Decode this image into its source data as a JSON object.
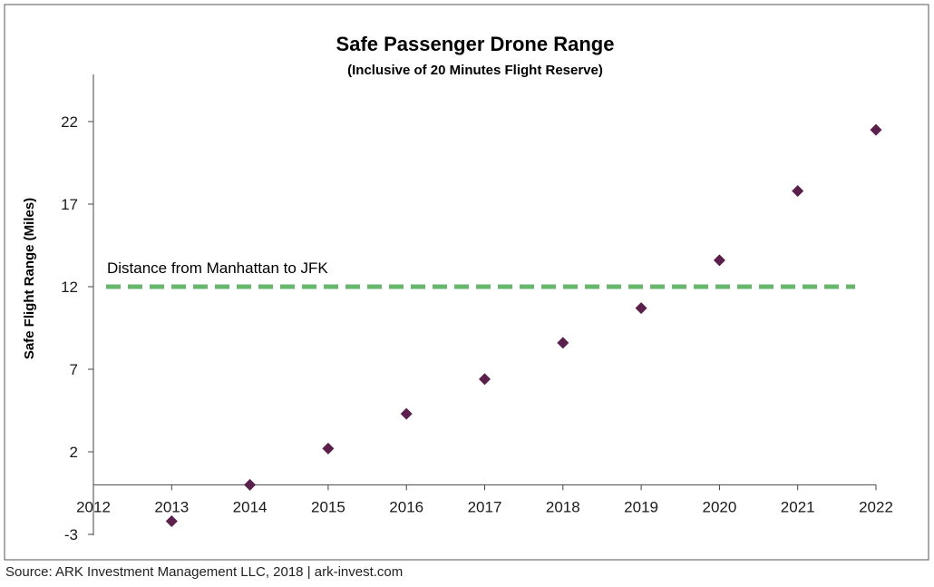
{
  "chart_data": {
    "type": "scatter",
    "title": "Safe Passenger Drone Range",
    "subtitle": "(Inclusive of 20 Minutes Flight Reserve)",
    "xlabel": "",
    "ylabel": "Safe Flight Range (Miles)",
    "xlim": [
      2012,
      2022
    ],
    "ylim": [
      -3,
      25
    ],
    "x_ticks": [
      "2012",
      "2013",
      "2014",
      "2015",
      "2016",
      "2017",
      "2018",
      "2019",
      "2020",
      "2021",
      "2022"
    ],
    "y_ticks": [
      "-3",
      "2",
      "7",
      "12",
      "17",
      "22"
    ],
    "series": [
      {
        "name": "Safe Passenger Drone Range",
        "color": "#5a1f4a",
        "marker": "diamond",
        "x": [
          2013,
          2014,
          2015,
          2016,
          2017,
          2018,
          2019,
          2020,
          2021,
          2022
        ],
        "y": [
          -2.2,
          0,
          2.2,
          4.3,
          6.4,
          8.6,
          10.7,
          13.6,
          17.8,
          21.5
        ]
      }
    ],
    "reference_line": {
      "label": "Distance from Manhattan to JFK",
      "value": 12,
      "color": "#66b66e",
      "style": "dashed"
    },
    "grid": false
  },
  "source": "Source: ARK Investment Management LLC, 2018 | ark-invest.com"
}
